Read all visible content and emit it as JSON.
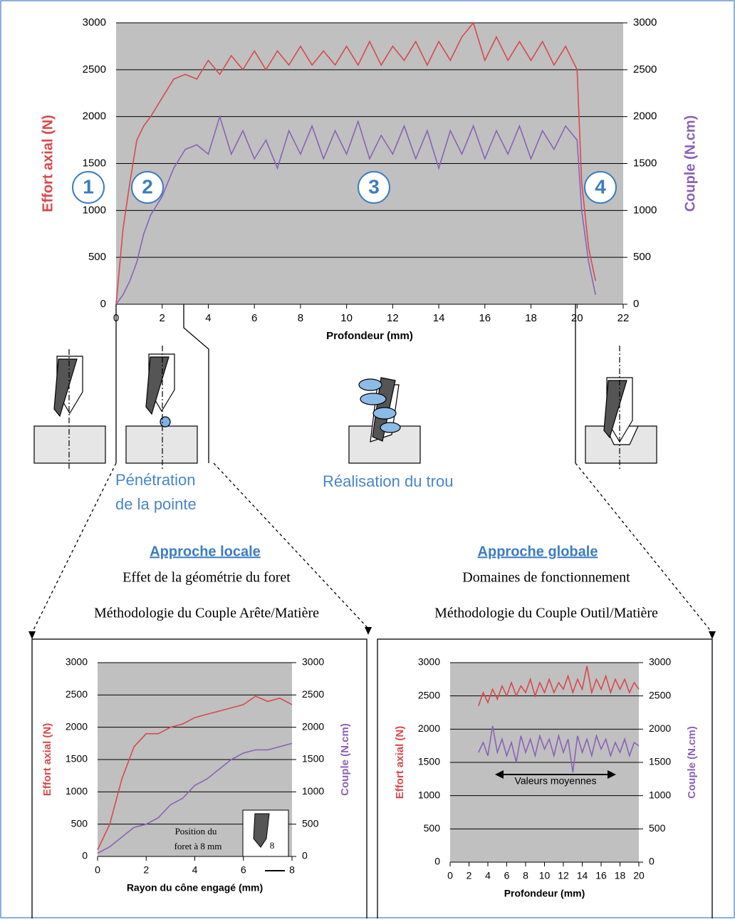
{
  "chart_data": [
    {
      "type": "line",
      "xlabel": "Profondeur (mm)",
      "ylabel": "Effort axial (N)",
      "y2label": "Couple (N.cm)",
      "xlim": [
        0,
        22
      ],
      "xticks": [
        0,
        2,
        4,
        6,
        8,
        10,
        12,
        14,
        16,
        18,
        20,
        22
      ],
      "ylim": [
        0,
        3000
      ],
      "yticks": [
        0,
        500,
        1000,
        1500,
        2000,
        2500,
        3000
      ],
      "y2lim": [
        0,
        3000
      ],
      "y2ticks": [
        0,
        500,
        1000,
        1500,
        2000,
        2500,
        3000
      ],
      "grid": true,
      "x": [
        0,
        0.3,
        0.6,
        0.9,
        1.2,
        1.5,
        2,
        2.5,
        3,
        3.5,
        4,
        4.5,
        5,
        5.5,
        6,
        6.5,
        7,
        7.5,
        8,
        8.5,
        9,
        9.5,
        10,
        10.5,
        11,
        11.5,
        12,
        12.5,
        13,
        13.5,
        14,
        14.5,
        15,
        15.5,
        16,
        16.5,
        17,
        17.5,
        18,
        18.5,
        19,
        19.5,
        20,
        20.2,
        20.5,
        20.8
      ],
      "series": [
        {
          "color": "#d9494b",
          "values": [
            0,
            800,
            1300,
            1750,
            1900,
            2000,
            2200,
            2400,
            2450,
            2400,
            2600,
            2450,
            2650,
            2500,
            2700,
            2500,
            2700,
            2550,
            2750,
            2550,
            2700,
            2550,
            2750,
            2550,
            2800,
            2550,
            2750,
            2600,
            2800,
            2550,
            2800,
            2600,
            2850,
            3000,
            2600,
            2850,
            2600,
            2800,
            2600,
            2800,
            2550,
            2750,
            2500,
            1300,
            600,
            250
          ]
        },
        {
          "color": "#8b62b9",
          "axis": "y2",
          "values": [
            0,
            100,
            250,
            450,
            750,
            950,
            1150,
            1450,
            1650,
            1700,
            1600,
            2000,
            1600,
            1850,
            1550,
            1750,
            1450,
            1850,
            1600,
            1900,
            1550,
            1850,
            1600,
            1950,
            1550,
            1800,
            1600,
            1900,
            1550,
            1850,
            1450,
            1850,
            1600,
            1900,
            1550,
            1850,
            1600,
            1900,
            1550,
            1850,
            1650,
            1900,
            1750,
            1000,
            450,
            100
          ]
        }
      ],
      "annotations": [
        "1",
        "2",
        "3",
        "4"
      ]
    },
    {
      "type": "line",
      "xlabel": "Rayon du cône engagé (mm)",
      "ylabel": "Effort axial (N)",
      "y2label": "Couple (N.cm)",
      "xlim": [
        0,
        8
      ],
      "xticks": [
        0,
        2,
        4,
        6,
        8
      ],
      "ylim": [
        0,
        3000
      ],
      "yticks": [
        0,
        500,
        1000,
        1500,
        2000,
        2500,
        3000
      ],
      "y2lim": [
        0,
        3000
      ],
      "y2ticks": [
        0,
        500,
        1000,
        1500,
        2000,
        2500,
        3000
      ],
      "grid": true,
      "x": [
        0,
        0.5,
        1,
        1.5,
        2,
        2.5,
        3,
        3.5,
        4,
        4.5,
        5,
        5.5,
        6,
        6.5,
        7,
        7.5,
        8
      ],
      "series": [
        {
          "color": "#d9494b",
          "values": [
            100,
            500,
            1200,
            1700,
            1900,
            1900,
            2000,
            2050,
            2150,
            2200,
            2250,
            2300,
            2350,
            2480,
            2400,
            2450,
            2350
          ]
        },
        {
          "color": "#8b62b9",
          "axis": "y2",
          "values": [
            50,
            150,
            300,
            450,
            500,
            600,
            800,
            900,
            1100,
            1200,
            1350,
            1500,
            1600,
            1650,
            1650,
            1700,
            1750
          ]
        }
      ],
      "annotations": [
        "Position du",
        "foret à 8 mm",
        "8"
      ]
    },
    {
      "type": "line",
      "xlabel": "Profondeur (mm)",
      "ylabel": "Effort axial (N)",
      "y2label": "Couple (N.cm)",
      "xlim": [
        0,
        20
      ],
      "xticks": [
        0,
        2,
        4,
        6,
        8,
        10,
        12,
        14,
        16,
        18,
        20
      ],
      "ylim": [
        0,
        3000
      ],
      "yticks": [
        0,
        500,
        1000,
        1500,
        2000,
        2500,
        3000
      ],
      "y2lim": [
        0,
        3000
      ],
      "y2ticks": [
        0,
        500,
        1000,
        1500,
        2000,
        2500,
        3000
      ],
      "grid": true,
      "x": [
        3,
        3.5,
        4,
        4.5,
        5,
        5.5,
        6,
        6.5,
        7,
        7.5,
        8,
        8.5,
        9,
        9.5,
        10,
        10.5,
        11,
        11.5,
        12,
        12.5,
        13,
        13.5,
        14,
        14.5,
        15,
        15.5,
        16,
        16.5,
        17,
        17.5,
        18,
        18.5,
        19,
        19.5,
        20
      ],
      "series": [
        {
          "color": "#d9494b",
          "values": [
            2350,
            2550,
            2400,
            2600,
            2450,
            2650,
            2500,
            2700,
            2500,
            2650,
            2550,
            2750,
            2500,
            2700,
            2550,
            2750,
            2550,
            2700,
            2600,
            2800,
            2550,
            2750,
            2600,
            2950,
            2550,
            2750,
            2600,
            2800,
            2550,
            2750,
            2600,
            2750,
            2550,
            2700,
            2600
          ]
        },
        {
          "color": "#8b62b9",
          "axis": "y2",
          "values": [
            1650,
            1800,
            1600,
            2050,
            1650,
            1850,
            1600,
            1800,
            1500,
            1900,
            1650,
            1850,
            1600,
            1900,
            1700,
            1850,
            1600,
            1900,
            1650,
            1850,
            1350,
            1900,
            1650,
            1850,
            1600,
            1900,
            1700,
            1850,
            1600,
            1800,
            1650,
            1850,
            1600,
            1800,
            1750
          ]
        }
      ],
      "annotations": [
        "Valeurs moyennes"
      ]
    }
  ],
  "figure": {
    "penetration": [
      "Pénétration",
      "de la pointe"
    ],
    "realisation": "Réalisation du trou",
    "locale": {
      "title": "Approche locale",
      "lines": [
        "Effet de la géométrie du foret",
        "Méthodologie du Couple Arête/Matière"
      ]
    },
    "globale": {
      "title": "Approche globale",
      "lines": [
        "Domaines de fonctionnement",
        "Méthodologie du Couple Outil/Matière"
      ]
    }
  }
}
